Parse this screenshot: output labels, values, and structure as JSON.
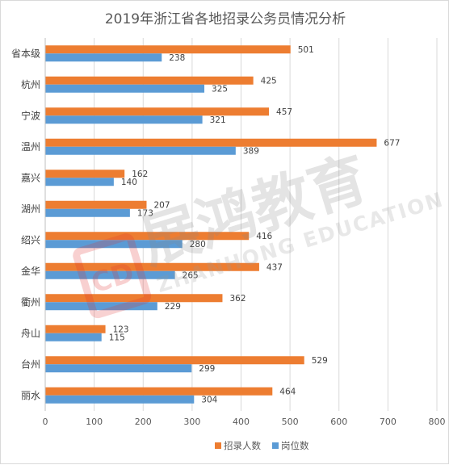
{
  "chart_data": {
    "type": "bar",
    "orientation": "horizontal",
    "title": "2019年浙江省各地招录公务员情况分析",
    "categories": [
      "省本级",
      "杭州",
      "宁波",
      "温州",
      "嘉兴",
      "湖州",
      "绍兴",
      "金华",
      "衢州",
      "舟山",
      "台州",
      "丽水"
    ],
    "series": [
      {
        "name": "招录人数",
        "color": "#ed7d31",
        "values": [
          501,
          425,
          457,
          677,
          162,
          207,
          416,
          437,
          362,
          123,
          529,
          464
        ]
      },
      {
        "name": "岗位数",
        "color": "#5b9bd5",
        "values": [
          238,
          325,
          321,
          389,
          140,
          173,
          280,
          265,
          229,
          115,
          299,
          304
        ]
      }
    ],
    "xlim": [
      0,
      800
    ],
    "xticks": [
      0,
      100,
      200,
      300,
      400,
      500,
      600,
      700,
      800
    ],
    "grid": true,
    "legend": "bottom-right",
    "data_labels": true
  },
  "watermark": {
    "logo_letter": "CD",
    "main_text": "展鸿教育",
    "sub_text": "ZHANHONG EDUCATION"
  }
}
